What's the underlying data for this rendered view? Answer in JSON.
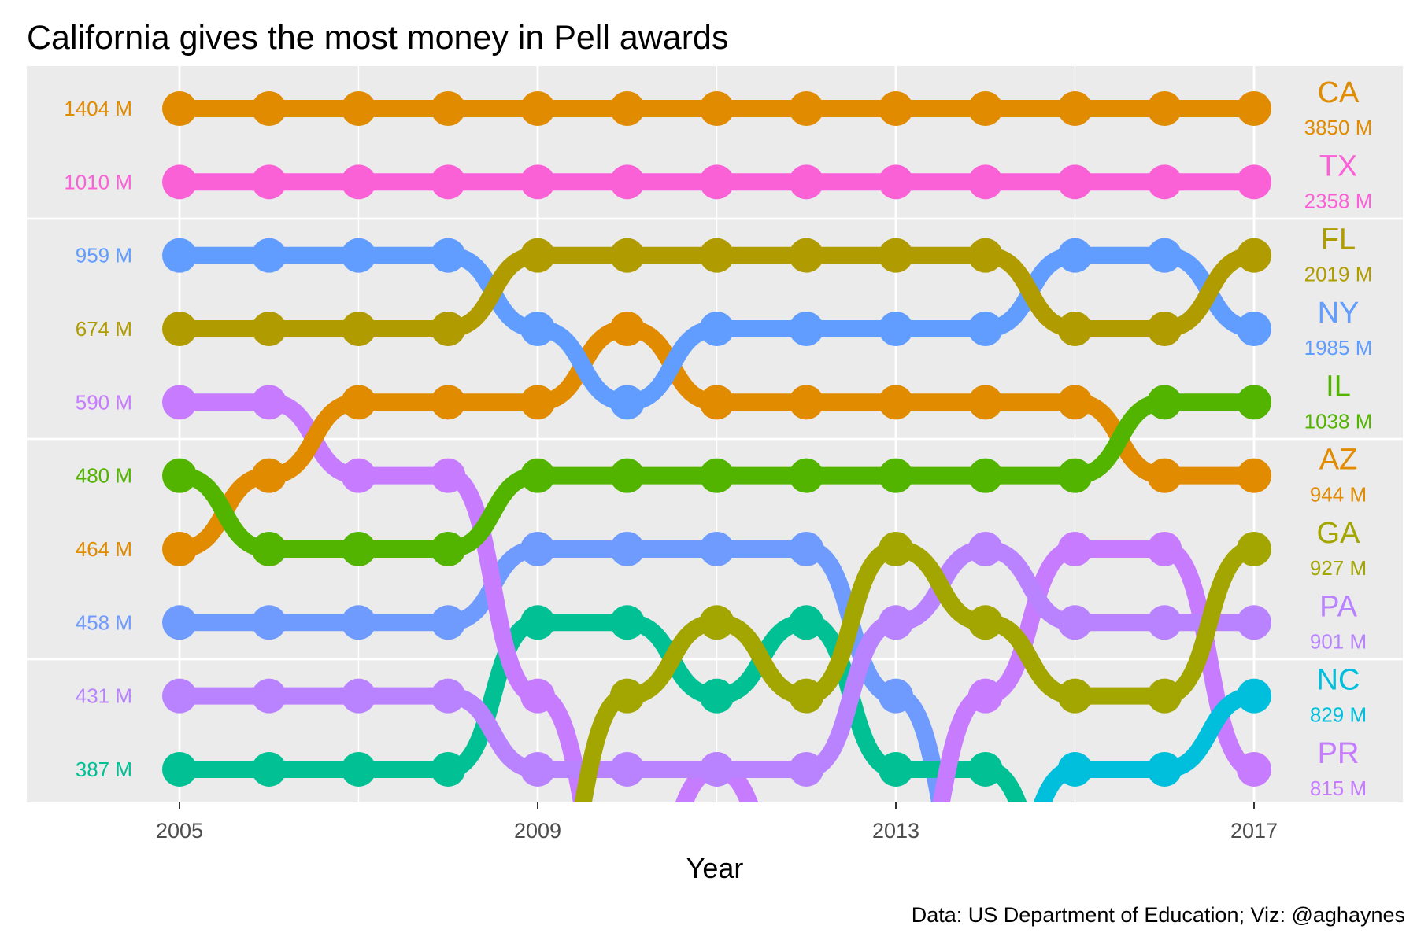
{
  "chart_data": {
    "type": "line",
    "title": "California gives the most money in Pell awards",
    "xlabel": "Year",
    "ylabel": "",
    "caption": "Data: US Department of Education; Viz: @aghaynes",
    "x": [
      2005,
      2006,
      2007,
      2008,
      2009,
      2010,
      2011,
      2012,
      2013,
      2014,
      2015,
      2016,
      2017
    ],
    "x_ticks": [
      2005,
      2009,
      2013,
      2017
    ],
    "x_tick_labels": [
      "2005",
      "2009",
      "2013",
      "2017"
    ],
    "y_axis": "rank (1 = top, reversed)",
    "ylim": [
      1,
      10
    ],
    "grid": true,
    "left_labels": [
      {
        "rank": 1,
        "text": "1404 M",
        "color": "#E08B00"
      },
      {
        "rank": 2,
        "text": "1010 M",
        "color": "#FB61D7"
      },
      {
        "rank": 3,
        "text": "959 M",
        "color": "#619CFF"
      },
      {
        "rank": 4,
        "text": "674 M",
        "color": "#B09C00"
      },
      {
        "rank": 5,
        "text": "590 M",
        "color": "#C77CFF"
      },
      {
        "rank": 6,
        "text": "480 M",
        "color": "#53B400"
      },
      {
        "rank": 7,
        "text": "464 M",
        "color": "#E08B00"
      },
      {
        "rank": 8,
        "text": "458 M",
        "color": "#6F9BFF"
      },
      {
        "rank": 9,
        "text": "431 M",
        "color": "#B983FF"
      },
      {
        "rank": 10,
        "text": "387 M",
        "color": "#00C094"
      }
    ],
    "series": [
      {
        "name": "CA",
        "total": "3850 M",
        "color": "#E08B00",
        "label_rank": 1,
        "ranks": [
          1,
          1,
          1,
          1,
          1,
          1,
          1,
          1,
          1,
          1,
          1,
          1,
          1
        ]
      },
      {
        "name": "TX",
        "total": "2358 M",
        "color": "#FB61D7",
        "label_rank": 2,
        "ranks": [
          2,
          2,
          2,
          2,
          2,
          2,
          2,
          2,
          2,
          2,
          2,
          2,
          2
        ]
      },
      {
        "name": "FL",
        "total": "2019 M",
        "color": "#B09C00",
        "label_rank": 3,
        "ranks": [
          4,
          4,
          4,
          4,
          3,
          3,
          3,
          3,
          3,
          3,
          4,
          4,
          3
        ]
      },
      {
        "name": "NY",
        "total": "1985 M",
        "color": "#619CFF",
        "label_rank": 4,
        "ranks": [
          3,
          3,
          3,
          3,
          4,
          5,
          4,
          4,
          4,
          4,
          3,
          3,
          4
        ]
      },
      {
        "name": "IL",
        "total": "1038 M",
        "color": "#53B400",
        "label_rank": 5,
        "ranks": [
          6,
          7,
          7,
          7,
          6,
          6,
          6,
          6,
          6,
          6,
          6,
          5,
          5
        ]
      },
      {
        "name": "AZ",
        "total": "944 M",
        "color": "#E08B00",
        "label_rank": 6,
        "ranks": [
          7,
          6,
          5,
          5,
          5,
          4,
          5,
          5,
          5,
          5,
          5,
          6,
          6
        ]
      },
      {
        "name": "GA",
        "total": "927 M",
        "color": "#A3A500",
        "label_rank": 7,
        "ranks": [
          12,
          12,
          12,
          12,
          12,
          9,
          8,
          9,
          7,
          8,
          9,
          9,
          7
        ]
      },
      {
        "name": "PA",
        "total": "901 M",
        "color": "#B983FF",
        "label_rank": 8,
        "ranks": [
          9,
          9,
          9,
          9,
          10,
          10,
          10,
          10,
          8,
          7,
          8,
          8,
          8
        ]
      },
      {
        "name": "NC",
        "total": "829 M",
        "color": "#00BFDC",
        "label_rank": 9,
        "ranks": [
          12,
          12,
          12,
          12,
          12,
          12,
          12,
          12,
          12,
          12,
          10,
          10,
          9
        ]
      },
      {
        "name": "PR",
        "total": "815 M",
        "color": "#C77CFF",
        "label_rank": 10,
        "ranks": [
          5,
          5,
          6,
          6,
          9,
          12,
          10,
          12,
          12,
          9,
          7,
          7,
          10
        ]
      },
      {
        "name": "",
        "total": "",
        "color": "#00C094",
        "label_rank": null,
        "ranks": [
          10,
          10,
          10,
          10,
          8,
          8,
          9,
          8,
          10,
          10,
          12,
          12,
          12
        ]
      },
      {
        "name": "",
        "total": "",
        "color": "#6F9BFF",
        "label_rank": null,
        "ranks": [
          8,
          8,
          8,
          8,
          7,
          7,
          7,
          7,
          9,
          12,
          12,
          12,
          12
        ]
      }
    ]
  }
}
